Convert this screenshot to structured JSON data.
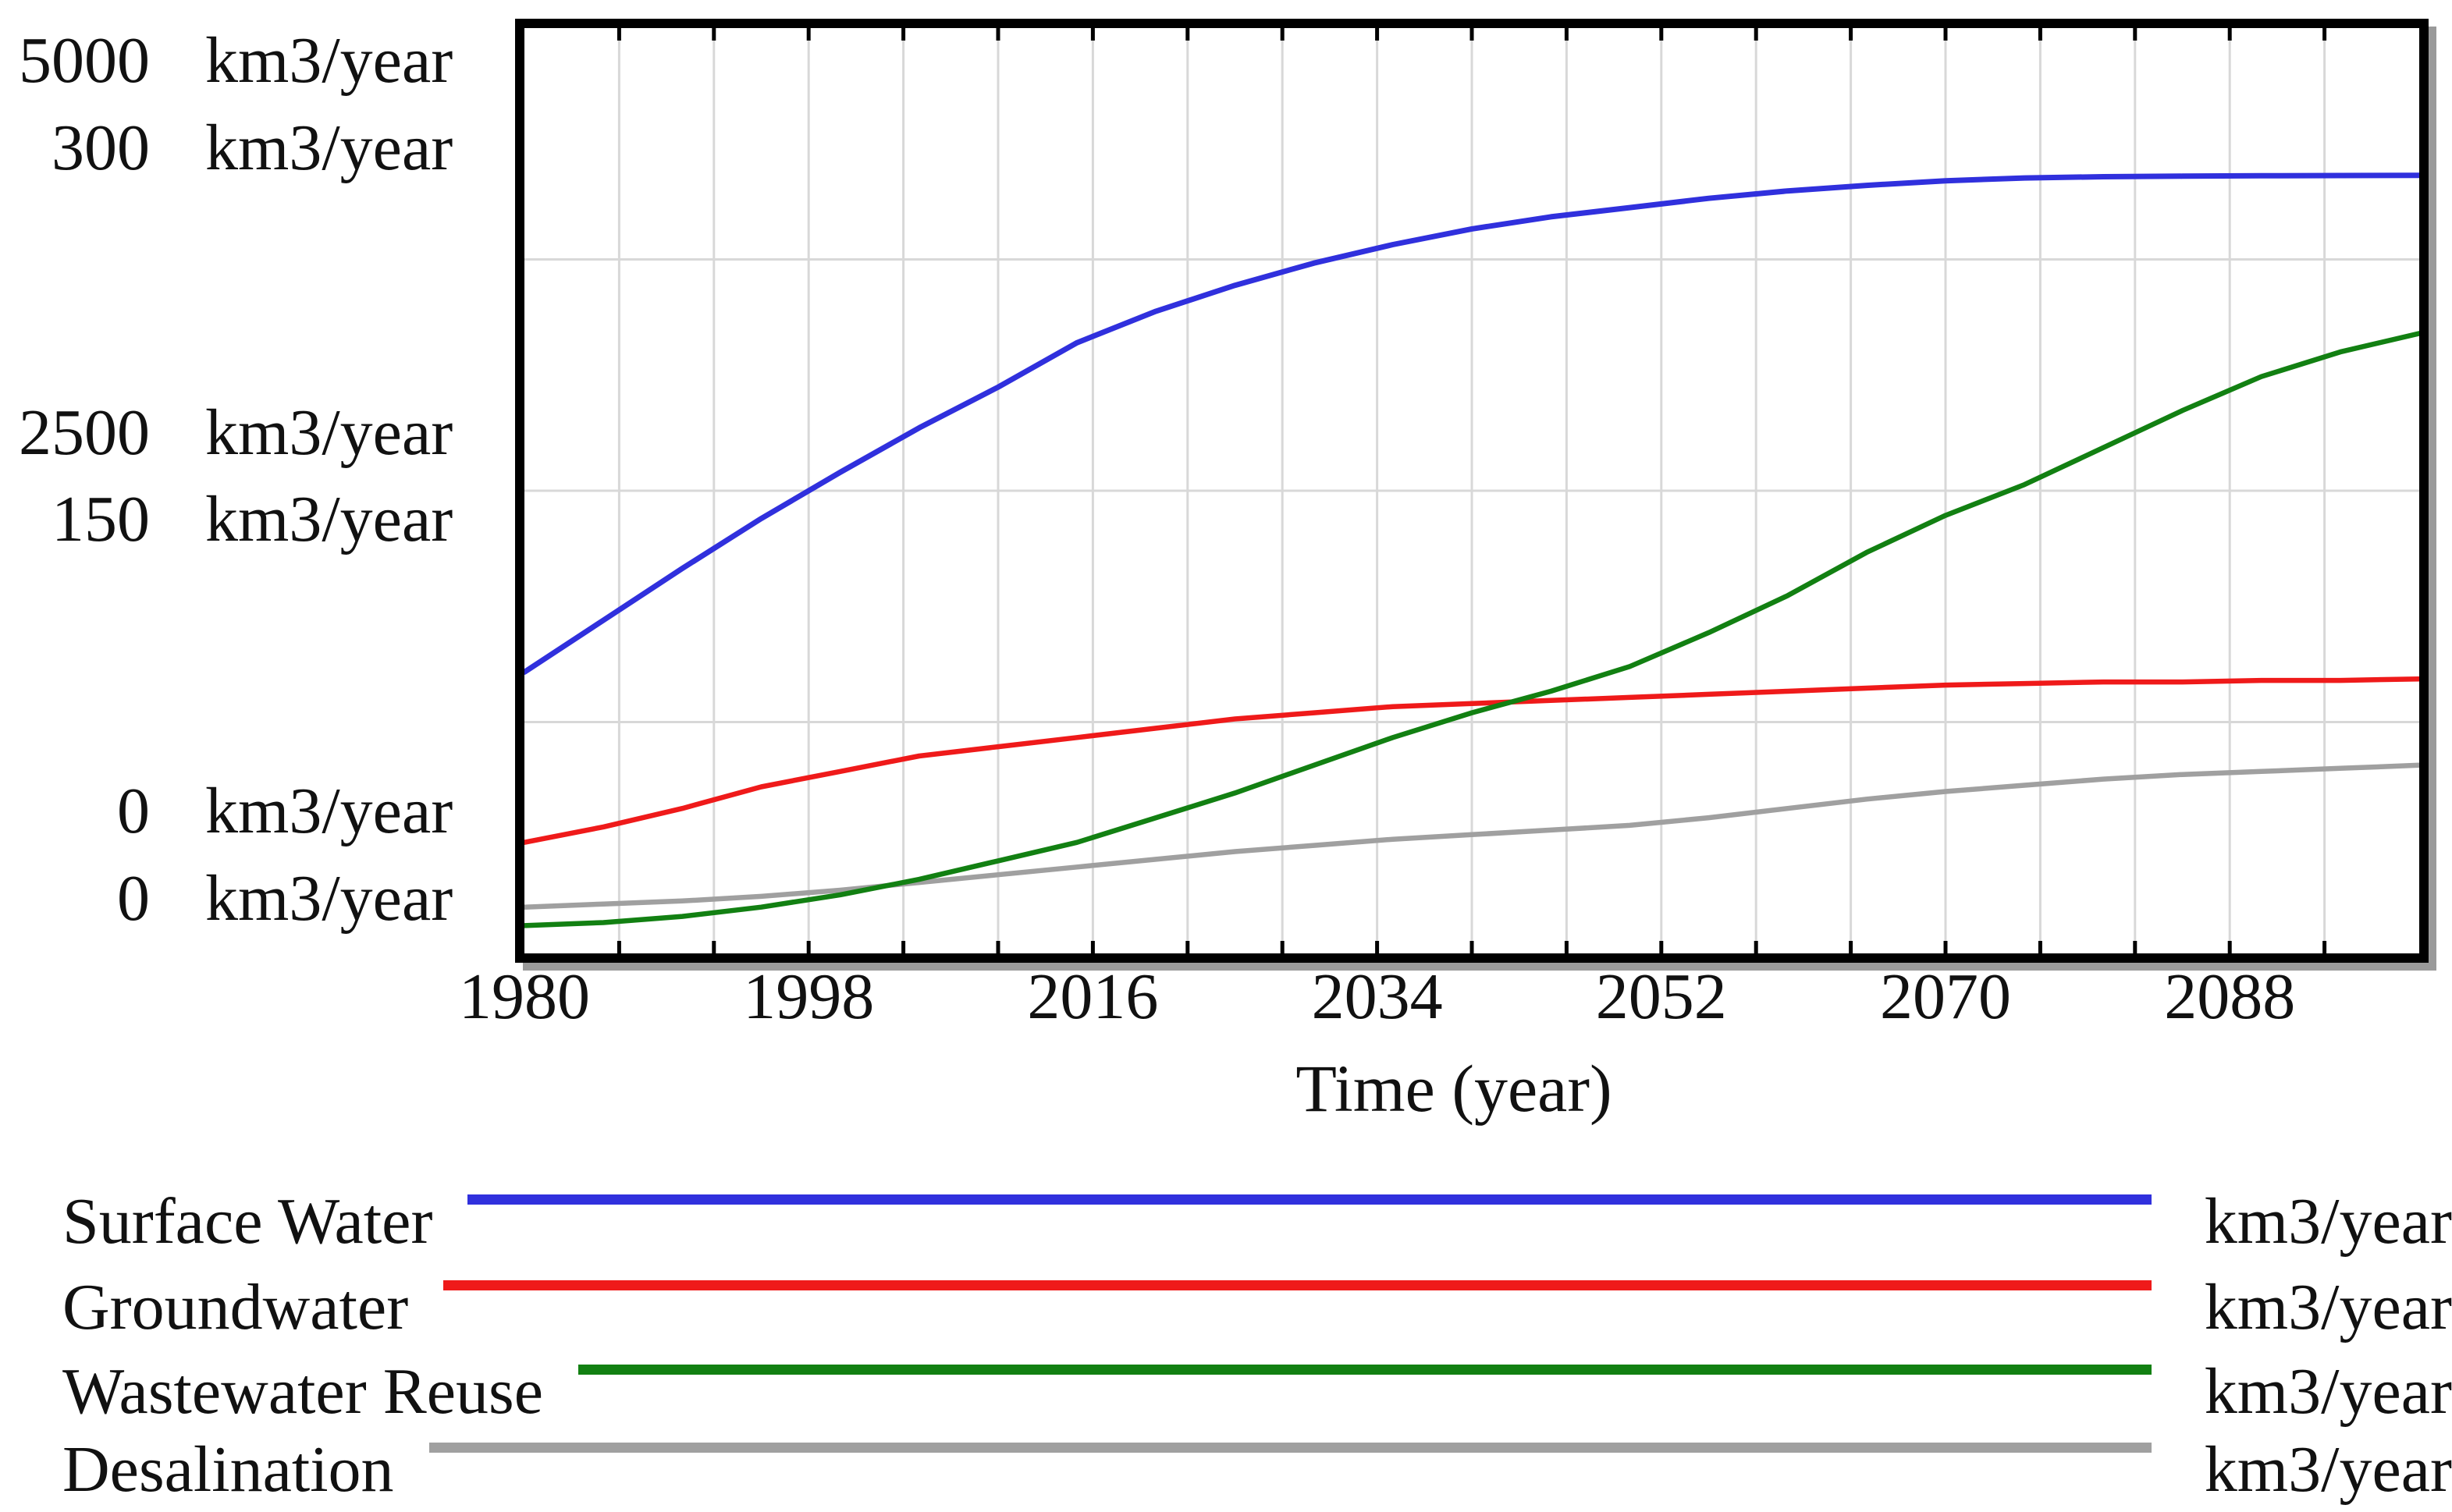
{
  "figure": {
    "background": "#ffffff",
    "text_color": "#111111",
    "grid_color": "#d8d8d8",
    "frame_color": "#000000",
    "shadow_color": "#9a9a9a"
  },
  "y_axis": {
    "scales": [
      {
        "id": "A",
        "max": 5000,
        "unit": "km3/year",
        "ticks": [
          "5000",
          "2500",
          "0"
        ]
      },
      {
        "id": "B",
        "max": 300,
        "unit": "km3/year",
        "ticks": [
          "300",
          "150",
          "0"
        ]
      }
    ]
  },
  "x_axis": {
    "label": "Time (year)",
    "min": 1980,
    "max": 2100,
    "ticks": [
      1980,
      1998,
      2016,
      2034,
      2052,
      2070,
      2088
    ],
    "grid_step_years": 6
  },
  "legend": [
    {
      "label": "Surface Water",
      "unit": "km3/year",
      "color": "#3030dd"
    },
    {
      "label": "Groundwater",
      "unit": "km3/year",
      "color": "#ef1a1a"
    },
    {
      "label": "Wastewater Reuse",
      "unit": "km3/year",
      "color": "#128012"
    },
    {
      "label": "Desalination",
      "unit": "km3/year",
      "color": "#a0a0a0"
    }
  ],
  "chart_data": {
    "type": "line",
    "title": "",
    "xlabel": "Time (year)",
    "ylabel_units": "km3/year",
    "x_range": [
      1980,
      2100
    ],
    "grid": true,
    "legend_position": "bottom",
    "x": [
      1980,
      1985,
      1990,
      1995,
      2000,
      2005,
      2010,
      2015,
      2020,
      2025,
      2030,
      2035,
      2040,
      2045,
      2050,
      2055,
      2060,
      2065,
      2070,
      2075,
      2080,
      2085,
      2090,
      2095,
      2100
    ],
    "series": [
      {
        "name": "Surface Water",
        "unit": "km3/year",
        "color": "#3030dd",
        "axis_min": 0,
        "axis_max": 5000,
        "stroke_width": 7,
        "values": [
          1520,
          1800,
          2080,
          2350,
          2600,
          2840,
          3060,
          3300,
          3470,
          3610,
          3730,
          3830,
          3915,
          3980,
          4030,
          4080,
          4120,
          4150,
          4175,
          4190,
          4197,
          4200,
          4202,
          4203,
          4204
        ]
      },
      {
        "name": "Groundwater",
        "unit": "km3/year",
        "color": "#ef1a1a",
        "axis_min": 0,
        "axis_max": 300,
        "stroke_width": 6.5,
        "values": [
          36,
          41,
          47,
          54,
          59,
          64,
          67,
          70,
          73,
          76,
          78,
          80,
          81,
          82,
          83,
          84,
          85,
          86,
          87,
          87.5,
          88,
          88,
          88.5,
          88.5,
          89
        ]
      },
      {
        "name": "Desalination",
        "unit": "km3/year",
        "color": "#a0a0a0",
        "axis_min": 0,
        "axis_max": 300,
        "stroke_width": 6.5,
        "values": [
          15,
          16,
          17,
          18.5,
          20.5,
          23,
          25.5,
          28,
          30.5,
          33,
          35,
          37,
          38.5,
          40,
          41.5,
          44,
          47,
          50,
          52.5,
          54.5,
          56.5,
          58,
          59,
          60,
          61
        ]
      },
      {
        "name": "Wastewater Reuse",
        "unit": "km3/year",
        "color": "#128012",
        "axis_min": 0,
        "axis_max": 300,
        "stroke_width": 6.5,
        "values": [
          9,
          10,
          12,
          15,
          19,
          24,
          30,
          36,
          44,
          52,
          61,
          70,
          78,
          85,
          93,
          104,
          116,
          130,
          142,
          152,
          164,
          176,
          187,
          195,
          201
        ]
      }
    ]
  }
}
